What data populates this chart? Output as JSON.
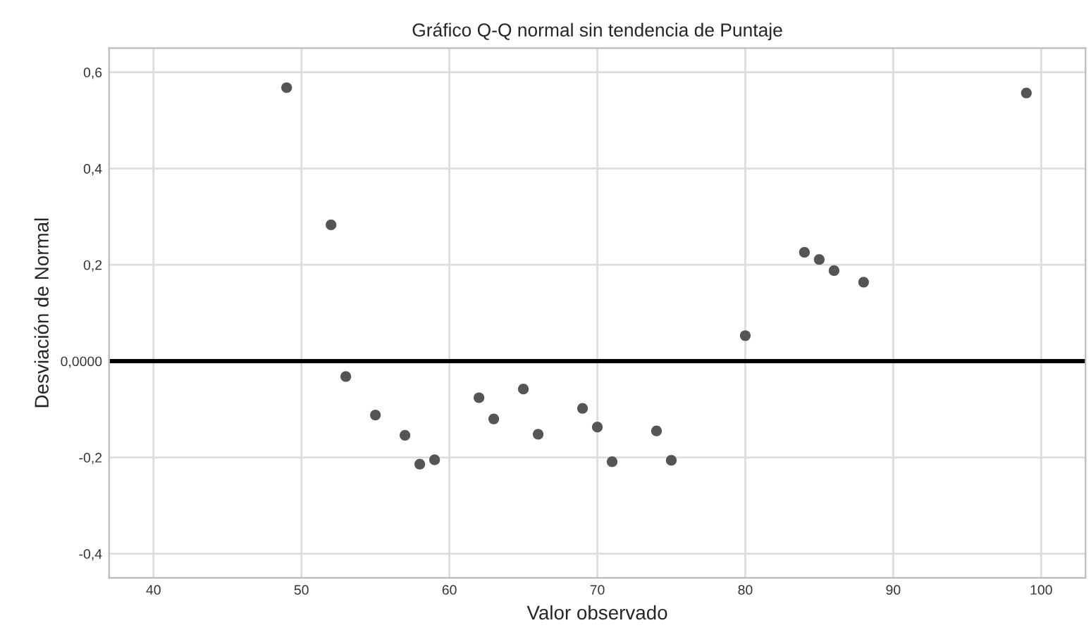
{
  "chart_data": {
    "type": "scatter",
    "title": "Gráfico Q-Q normal sin tendencia de Puntaje",
    "xlabel": "Valor observado",
    "ylabel": "Desviación de Normal",
    "series": [
      {
        "color": "#555555",
        "x": [
          49,
          52,
          53,
          55,
          57,
          58,
          59,
          62,
          63,
          65,
          66,
          69,
          70,
          71,
          74,
          75,
          80,
          84,
          85,
          86,
          88,
          99
        ],
        "values": [
          0.568,
          0.283,
          -0.032,
          -0.112,
          -0.154,
          -0.214,
          -0.205,
          -0.076,
          -0.12,
          -0.058,
          -0.152,
          -0.098,
          -0.137,
          -0.209,
          -0.145,
          -0.206,
          0.053,
          0.226,
          0.211,
          0.188,
          0.164,
          0.557
        ]
      }
    ],
    "xlim": [
      37,
      103
    ],
    "xticks": [
      40,
      50,
      60,
      70,
      80,
      90,
      100
    ],
    "ylim": [
      -0.45,
      0.65
    ],
    "yticks": [
      {
        "value": -0.4,
        "label": "-0,4"
      },
      {
        "value": -0.2,
        "label": "-0,2"
      },
      {
        "value": 0,
        "label": "0,0000"
      },
      {
        "value": 0.2,
        "label": "0,2"
      },
      {
        "value": 0.4,
        "label": "0,4"
      },
      {
        "value": 0.6,
        "label": "0,6"
      }
    ],
    "ref_lines": [
      {
        "axis": "y",
        "value": 0,
        "color": "#000000"
      }
    ],
    "grid": true,
    "marker": "circle"
  }
}
